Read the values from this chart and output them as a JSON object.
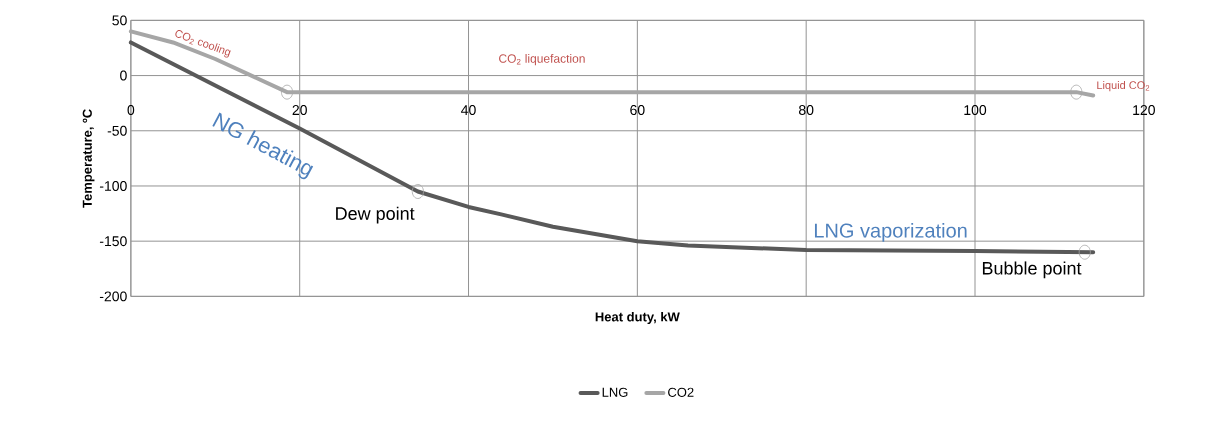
{
  "chart_data": {
    "type": "line",
    "xlabel": "Heat duty, kW",
    "ylabel": "Temperature, ºC",
    "xlim": [
      0,
      120
    ],
    "ylim": [
      -200,
      50
    ],
    "xticks": [
      0,
      20,
      40,
      60,
      80,
      100,
      120
    ],
    "yticks": [
      -200,
      -150,
      -100,
      -50,
      0,
      50
    ],
    "grid": true,
    "legend": "bottom",
    "series": [
      {
        "name": "LNG",
        "color": "#595959",
        "x": [
          0,
          20,
          34,
          40,
          44,
          50,
          60,
          66,
          80,
          100,
          114
        ],
        "values": [
          30,
          -48,
          -105,
          -119,
          -126,
          -137,
          -150,
          -154,
          -158,
          -159,
          -160
        ]
      },
      {
        "name": "CO2",
        "color": "#a6a6a6",
        "x": [
          0,
          5,
          10,
          18.5,
          112,
          114
        ],
        "values": [
          40,
          30,
          15,
          -15,
          -15,
          -18
        ]
      },
      {
        "type": "scatter",
        "marker": "circle",
        "color": "#a6a6a6",
        "x": [
          18.5,
          112,
          34,
          113
        ],
        "values": [
          -15,
          -15,
          -105,
          -160
        ]
      }
    ],
    "annotations": [
      "CO$_{2}$ cooling",
      "CO$_{2}$ liquefaction",
      {
        "text": "Liquid CO$_{2}$",
        "x": 114,
        "y": -18
      },
      "NG heating",
      {
        "text": "Dew point",
        "x": 34,
        "y": -105
      },
      "LNG vaporization",
      {
        "text": "Bubble point",
        "x": 113,
        "y": -160
      }
    ]
  }
}
